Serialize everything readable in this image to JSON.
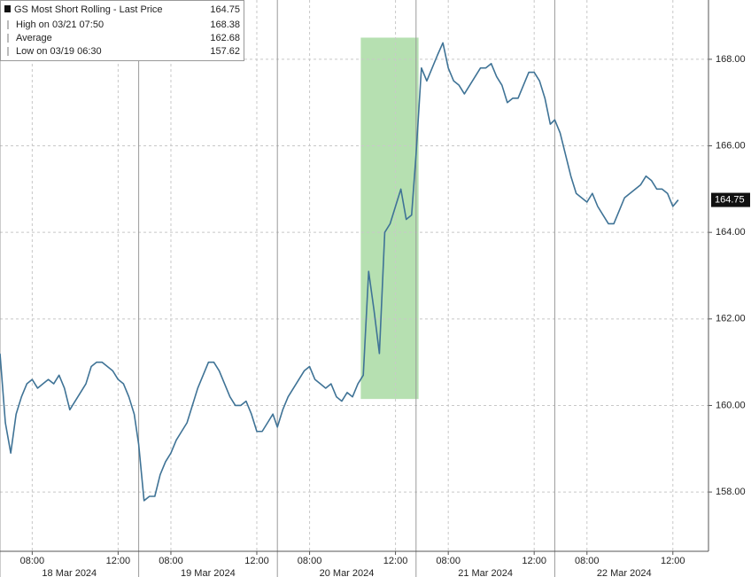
{
  "chart_data": {
    "type": "line",
    "series": [
      {
        "name": "GS Most Short Rolling - Last Price",
        "color": "#3f7396",
        "values": [
          161.2,
          159.6,
          158.9,
          159.8,
          160.2,
          160.5,
          160.6,
          160.4,
          160.5,
          160.6,
          160.5,
          160.7,
          160.4,
          159.9,
          160.1,
          160.3,
          160.5,
          160.9,
          161.0,
          161.0,
          160.9,
          160.8,
          160.6,
          160.5,
          160.2,
          159.8,
          159.1,
          157.8,
          157.9,
          157.9,
          158.4,
          158.7,
          158.9,
          159.2,
          159.4,
          159.6,
          160.0,
          160.4,
          160.7,
          161.0,
          161.0,
          160.8,
          160.5,
          160.2,
          160.0,
          160.0,
          160.1,
          159.8,
          159.4,
          159.4,
          159.6,
          159.8,
          159.5,
          159.9,
          160.2,
          160.4,
          160.6,
          160.8,
          160.9,
          160.6,
          160.5,
          160.4,
          160.5,
          160.2,
          160.1,
          160.3,
          160.2,
          160.5,
          160.7,
          163.1,
          162.2,
          161.2,
          164.0,
          164.2,
          164.6,
          165.0,
          164.3,
          164.4,
          165.8,
          167.8,
          167.5,
          167.8,
          168.1,
          168.38,
          167.8,
          167.5,
          167.4,
          167.2,
          167.4,
          167.6,
          167.8,
          167.8,
          167.9,
          167.6,
          167.4,
          167.0,
          167.1,
          167.1,
          167.4,
          167.7,
          167.7,
          167.5,
          167.1,
          166.5,
          166.6,
          166.3,
          165.8,
          165.3,
          164.9,
          164.8,
          164.7,
          164.9,
          164.6,
          164.4,
          164.2,
          164.2,
          164.5,
          164.8,
          164.9,
          165.0,
          165.1,
          165.3,
          165.2,
          165.0,
          165.0,
          164.9,
          164.6,
          164.75
        ]
      }
    ],
    "x": [
      "2024-03-18 06:30",
      "2024-03-18 06:45",
      "2024-03-18 07:00",
      "2024-03-18 07:15",
      "2024-03-18 07:30",
      "2024-03-18 07:45",
      "2024-03-18 08:00",
      "2024-03-18 08:15",
      "2024-03-18 08:30",
      "2024-03-18 08:45",
      "2024-03-18 09:00",
      "2024-03-18 09:15",
      "2024-03-18 09:30",
      "2024-03-18 09:45",
      "2024-03-18 10:00",
      "2024-03-18 10:15",
      "2024-03-18 10:30",
      "2024-03-18 10:45",
      "2024-03-18 11:00",
      "2024-03-18 11:15",
      "2024-03-18 11:30",
      "2024-03-18 11:45",
      "2024-03-18 12:00",
      "2024-03-18 12:15",
      "2024-03-18 12:30",
      "2024-03-18 12:45",
      "2024-03-19 06:30",
      "2024-03-19 06:45",
      "2024-03-19 07:00",
      "2024-03-19 07:15",
      "2024-03-19 07:30",
      "2024-03-19 07:45",
      "2024-03-19 08:00",
      "2024-03-19 08:15",
      "2024-03-19 08:30",
      "2024-03-19 08:45",
      "2024-03-19 09:00",
      "2024-03-19 09:15",
      "2024-03-19 09:30",
      "2024-03-19 09:45",
      "2024-03-19 10:00",
      "2024-03-19 10:15",
      "2024-03-19 10:30",
      "2024-03-19 10:45",
      "2024-03-19 11:00",
      "2024-03-19 11:15",
      "2024-03-19 11:30",
      "2024-03-19 11:45",
      "2024-03-19 12:00",
      "2024-03-19 12:15",
      "2024-03-19 12:30",
      "2024-03-19 12:45",
      "2024-03-20 06:30",
      "2024-03-20 06:45",
      "2024-03-20 07:00",
      "2024-03-20 07:15",
      "2024-03-20 07:30",
      "2024-03-20 07:45",
      "2024-03-20 08:00",
      "2024-03-20 08:15",
      "2024-03-20 08:30",
      "2024-03-20 08:45",
      "2024-03-20 09:00",
      "2024-03-20 09:15",
      "2024-03-20 09:30",
      "2024-03-20 09:45",
      "2024-03-20 10:00",
      "2024-03-20 10:15",
      "2024-03-20 10:30",
      "2024-03-20 10:45",
      "2024-03-20 11:00",
      "2024-03-20 11:15",
      "2024-03-20 11:30",
      "2024-03-20 11:45",
      "2024-03-20 12:00",
      "2024-03-20 12:15",
      "2024-03-20 12:30",
      "2024-03-20 12:45",
      "2024-03-21 06:30",
      "2024-03-21 06:45",
      "2024-03-21 07:00",
      "2024-03-21 07:15",
      "2024-03-21 07:30",
      "2024-03-21 07:45",
      "2024-03-21 08:00",
      "2024-03-21 08:15",
      "2024-03-21 08:30",
      "2024-03-21 08:45",
      "2024-03-21 09:00",
      "2024-03-21 09:15",
      "2024-03-21 09:30",
      "2024-03-21 09:45",
      "2024-03-21 10:00",
      "2024-03-21 10:15",
      "2024-03-21 10:30",
      "2024-03-21 10:45",
      "2024-03-21 11:00",
      "2024-03-21 11:15",
      "2024-03-21 11:30",
      "2024-03-21 11:45",
      "2024-03-21 12:00",
      "2024-03-21 12:15",
      "2024-03-21 12:30",
      "2024-03-21 12:45",
      "2024-03-22 06:30",
      "2024-03-22 06:45",
      "2024-03-22 07:00",
      "2024-03-22 07:15",
      "2024-03-22 07:30",
      "2024-03-22 07:45",
      "2024-03-22 08:00",
      "2024-03-22 08:15",
      "2024-03-22 08:30",
      "2024-03-22 08:45",
      "2024-03-22 09:00",
      "2024-03-22 09:15",
      "2024-03-22 09:30",
      "2024-03-22 09:45",
      "2024-03-22 10:00",
      "2024-03-22 10:15",
      "2024-03-22 10:30",
      "2024-03-22 10:45",
      "2024-03-22 11:00",
      "2024-03-22 11:15",
      "2024-03-22 11:30",
      "2024-03-22 11:45",
      "2024-03-22 12:00",
      "2024-03-22 12:15"
    ],
    "xticks": [
      {
        "value": "2024-03-18 08:00",
        "label": "08:00"
      },
      {
        "value": "2024-03-18 12:00",
        "label": "12:00"
      },
      {
        "value": "2024-03-19 08:00",
        "label": "08:00"
      },
      {
        "value": "2024-03-19 12:00",
        "label": "12:00"
      },
      {
        "value": "2024-03-20 08:00",
        "label": "08:00"
      },
      {
        "value": "2024-03-20 12:00",
        "label": "12:00"
      },
      {
        "value": "2024-03-21 08:00",
        "label": "08:00"
      },
      {
        "value": "2024-03-21 12:00",
        "label": "12:00"
      },
      {
        "value": "2024-03-22 08:00",
        "label": "08:00"
      },
      {
        "value": "2024-03-22 12:00",
        "label": "12:00"
      }
    ],
    "x_group_labels": [
      {
        "value": "2024-03-18",
        "label": "18 Mar 2024"
      },
      {
        "value": "2024-03-19",
        "label": "19 Mar 2024"
      },
      {
        "value": "2024-03-20",
        "label": "20 Mar 2024"
      },
      {
        "value": "2024-03-21",
        "label": "21 Mar 2024"
      },
      {
        "value": "2024-03-22",
        "label": "22 Mar 2024"
      }
    ],
    "ylim": [
      156.63,
      169.37
    ],
    "yticks": [
      {
        "value": 158,
        "label": "158.00"
      },
      {
        "value": 160,
        "label": "160.00"
      },
      {
        "value": 162,
        "label": "162.00"
      },
      {
        "value": 164,
        "label": "164.00"
      },
      {
        "value": 166,
        "label": "166.00"
      },
      {
        "value": 168,
        "label": "168.00"
      }
    ],
    "grid": true,
    "last_value": 164.75,
    "legend_stats": [
      {
        "label": "High on 03/21 07:50",
        "value": 168.38
      },
      {
        "label": "Average",
        "value": 162.68
      },
      {
        "label": "Low on 03/19 06:30",
        "value": 157.62
      }
    ],
    "highlight": {
      "x": [
        "2024-03-20 10:23",
        "2024-03-21 06:37"
      ],
      "y": [
        160.15,
        168.5
      ],
      "color": "#a9dba3"
    }
  }
}
